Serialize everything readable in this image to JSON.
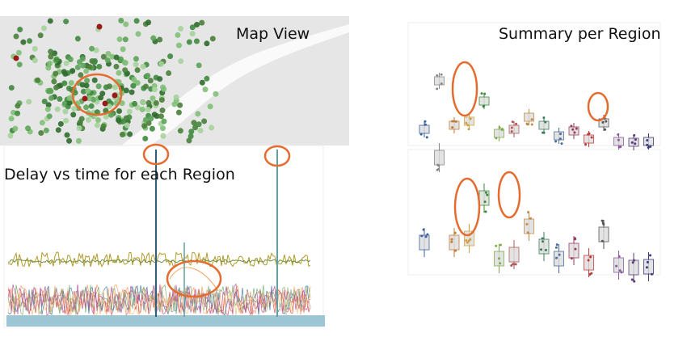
{
  "map_panel": {
    "title": "Map View"
  },
  "summary_panel": {
    "title": "Summary per Region"
  },
  "delay_panel": {
    "title": "Delay vs time for each Region"
  }
}
